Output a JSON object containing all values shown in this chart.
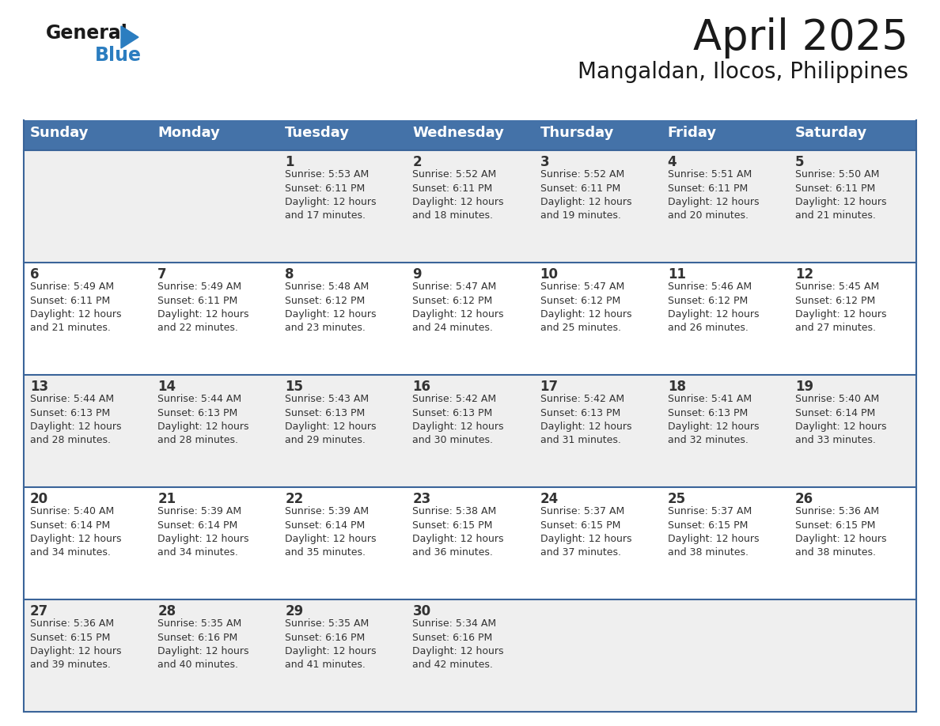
{
  "title": "April 2025",
  "subtitle": "Mangaldan, Ilocos, Philippines",
  "days_of_week": [
    "Sunday",
    "Monday",
    "Tuesday",
    "Wednesday",
    "Thursday",
    "Friday",
    "Saturday"
  ],
  "header_bg": "#4472A8",
  "header_text": "#FFFFFF",
  "row_bg_odd": "#EFEFEF",
  "row_bg_even": "#FFFFFF",
  "cell_border": "#3A6499",
  "text_color": "#333333",
  "logo_general_color": "#1a1a1a",
  "logo_blue_color": "#2B7DC0",
  "title_color": "#1a1a1a",
  "subtitle_color": "#1a1a1a",
  "calendar_data": [
    [
      {
        "day": "",
        "info": ""
      },
      {
        "day": "",
        "info": ""
      },
      {
        "day": "1",
        "info": "Sunrise: 5:53 AM\nSunset: 6:11 PM\nDaylight: 12 hours\nand 17 minutes."
      },
      {
        "day": "2",
        "info": "Sunrise: 5:52 AM\nSunset: 6:11 PM\nDaylight: 12 hours\nand 18 minutes."
      },
      {
        "day": "3",
        "info": "Sunrise: 5:52 AM\nSunset: 6:11 PM\nDaylight: 12 hours\nand 19 minutes."
      },
      {
        "day": "4",
        "info": "Sunrise: 5:51 AM\nSunset: 6:11 PM\nDaylight: 12 hours\nand 20 minutes."
      },
      {
        "day": "5",
        "info": "Sunrise: 5:50 AM\nSunset: 6:11 PM\nDaylight: 12 hours\nand 21 minutes."
      }
    ],
    [
      {
        "day": "6",
        "info": "Sunrise: 5:49 AM\nSunset: 6:11 PM\nDaylight: 12 hours\nand 21 minutes."
      },
      {
        "day": "7",
        "info": "Sunrise: 5:49 AM\nSunset: 6:11 PM\nDaylight: 12 hours\nand 22 minutes."
      },
      {
        "day": "8",
        "info": "Sunrise: 5:48 AM\nSunset: 6:12 PM\nDaylight: 12 hours\nand 23 minutes."
      },
      {
        "day": "9",
        "info": "Sunrise: 5:47 AM\nSunset: 6:12 PM\nDaylight: 12 hours\nand 24 minutes."
      },
      {
        "day": "10",
        "info": "Sunrise: 5:47 AM\nSunset: 6:12 PM\nDaylight: 12 hours\nand 25 minutes."
      },
      {
        "day": "11",
        "info": "Sunrise: 5:46 AM\nSunset: 6:12 PM\nDaylight: 12 hours\nand 26 minutes."
      },
      {
        "day": "12",
        "info": "Sunrise: 5:45 AM\nSunset: 6:12 PM\nDaylight: 12 hours\nand 27 minutes."
      }
    ],
    [
      {
        "day": "13",
        "info": "Sunrise: 5:44 AM\nSunset: 6:13 PM\nDaylight: 12 hours\nand 28 minutes."
      },
      {
        "day": "14",
        "info": "Sunrise: 5:44 AM\nSunset: 6:13 PM\nDaylight: 12 hours\nand 28 minutes."
      },
      {
        "day": "15",
        "info": "Sunrise: 5:43 AM\nSunset: 6:13 PM\nDaylight: 12 hours\nand 29 minutes."
      },
      {
        "day": "16",
        "info": "Sunrise: 5:42 AM\nSunset: 6:13 PM\nDaylight: 12 hours\nand 30 minutes."
      },
      {
        "day": "17",
        "info": "Sunrise: 5:42 AM\nSunset: 6:13 PM\nDaylight: 12 hours\nand 31 minutes."
      },
      {
        "day": "18",
        "info": "Sunrise: 5:41 AM\nSunset: 6:13 PM\nDaylight: 12 hours\nand 32 minutes."
      },
      {
        "day": "19",
        "info": "Sunrise: 5:40 AM\nSunset: 6:14 PM\nDaylight: 12 hours\nand 33 minutes."
      }
    ],
    [
      {
        "day": "20",
        "info": "Sunrise: 5:40 AM\nSunset: 6:14 PM\nDaylight: 12 hours\nand 34 minutes."
      },
      {
        "day": "21",
        "info": "Sunrise: 5:39 AM\nSunset: 6:14 PM\nDaylight: 12 hours\nand 34 minutes."
      },
      {
        "day": "22",
        "info": "Sunrise: 5:39 AM\nSunset: 6:14 PM\nDaylight: 12 hours\nand 35 minutes."
      },
      {
        "day": "23",
        "info": "Sunrise: 5:38 AM\nSunset: 6:15 PM\nDaylight: 12 hours\nand 36 minutes."
      },
      {
        "day": "24",
        "info": "Sunrise: 5:37 AM\nSunset: 6:15 PM\nDaylight: 12 hours\nand 37 minutes."
      },
      {
        "day": "25",
        "info": "Sunrise: 5:37 AM\nSunset: 6:15 PM\nDaylight: 12 hours\nand 38 minutes."
      },
      {
        "day": "26",
        "info": "Sunrise: 5:36 AM\nSunset: 6:15 PM\nDaylight: 12 hours\nand 38 minutes."
      }
    ],
    [
      {
        "day": "27",
        "info": "Sunrise: 5:36 AM\nSunset: 6:15 PM\nDaylight: 12 hours\nand 39 minutes."
      },
      {
        "day": "28",
        "info": "Sunrise: 5:35 AM\nSunset: 6:16 PM\nDaylight: 12 hours\nand 40 minutes."
      },
      {
        "day": "29",
        "info": "Sunrise: 5:35 AM\nSunset: 6:16 PM\nDaylight: 12 hours\nand 41 minutes."
      },
      {
        "day": "30",
        "info": "Sunrise: 5:34 AM\nSunset: 6:16 PM\nDaylight: 12 hours\nand 42 minutes."
      },
      {
        "day": "",
        "info": ""
      },
      {
        "day": "",
        "info": ""
      },
      {
        "day": "",
        "info": ""
      }
    ]
  ]
}
